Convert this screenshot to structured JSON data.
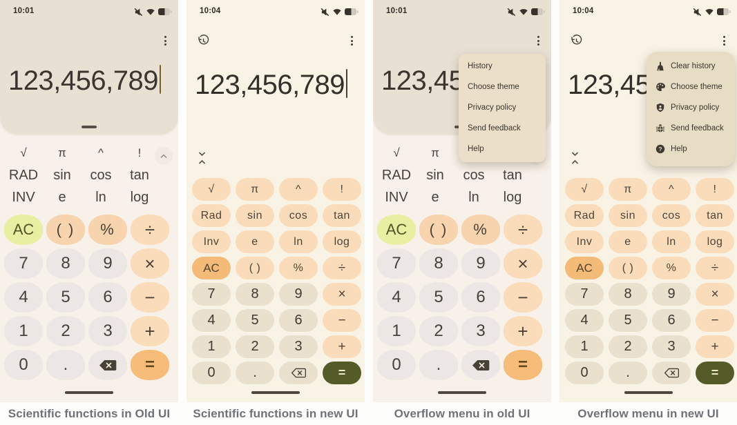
{
  "page": {
    "captions": [
      "Scientific functions in Old UI",
      "Scientific functions in new UI",
      "Overflow menu in old UI",
      "Overflow menu in new UI"
    ],
    "status_icons": [
      "volume-muted",
      "wifi",
      "battery"
    ]
  },
  "old": {
    "time": "10:01",
    "display": "123,456,789",
    "sci": [
      {
        "label": "√",
        "name": "sqrt-key",
        "type": "sym"
      },
      {
        "label": "π",
        "name": "pi-key",
        "type": "sym"
      },
      {
        "label": "^",
        "name": "power-key",
        "type": "sym"
      },
      {
        "label": "!",
        "name": "factorial-key",
        "type": "sym"
      },
      {
        "label": "RAD",
        "name": "rad-key",
        "type": "word"
      },
      {
        "label": "sin",
        "name": "sin-key",
        "type": "word"
      },
      {
        "label": "cos",
        "name": "cos-key",
        "type": "word"
      },
      {
        "label": "tan",
        "name": "tan-key",
        "type": "word"
      },
      {
        "label": "INV",
        "name": "inv-key",
        "type": "word"
      },
      {
        "label": "e",
        "name": "e-key",
        "type": "word"
      },
      {
        "label": "ln",
        "name": "ln-key",
        "type": "word"
      },
      {
        "label": "log",
        "name": "log-key",
        "type": "word"
      }
    ],
    "keys": [
      {
        "label": "AC",
        "name": "ac-key",
        "type": "ac"
      },
      {
        "label": "( )",
        "name": "parentheses-key",
        "type": "fn"
      },
      {
        "label": "%",
        "name": "percent-key",
        "type": "fn"
      },
      {
        "label": "÷",
        "name": "divide-key",
        "type": "op"
      },
      {
        "label": "7",
        "name": "key-7",
        "type": "num"
      },
      {
        "label": "8",
        "name": "key-8",
        "type": "num"
      },
      {
        "label": "9",
        "name": "key-9",
        "type": "num"
      },
      {
        "label": "×",
        "name": "multiply-key",
        "type": "op"
      },
      {
        "label": "4",
        "name": "key-4",
        "type": "num"
      },
      {
        "label": "5",
        "name": "key-5",
        "type": "num"
      },
      {
        "label": "6",
        "name": "key-6",
        "type": "num"
      },
      {
        "label": "−",
        "name": "minus-key",
        "type": "op"
      },
      {
        "label": "1",
        "name": "key-1",
        "type": "num"
      },
      {
        "label": "2",
        "name": "key-2",
        "type": "num"
      },
      {
        "label": "3",
        "name": "key-3",
        "type": "num"
      },
      {
        "label": "+",
        "name": "plus-key",
        "type": "op"
      },
      {
        "label": "0",
        "name": "key-0",
        "type": "num"
      },
      {
        "label": ".",
        "name": "decimal-key",
        "type": "num"
      },
      {
        "label": "",
        "name": "backspace-key",
        "type": "del-old"
      },
      {
        "label": "=",
        "name": "equals-key",
        "type": "eq"
      }
    ],
    "menu": {
      "items": [
        "History",
        "Choose theme",
        "Privacy policy",
        "Send feedback",
        "Help"
      ]
    }
  },
  "new": {
    "time": "10:04",
    "display": "123,456,789",
    "pills": [
      {
        "label": "√",
        "name": "sqrt-key",
        "type": "sci"
      },
      {
        "label": "π",
        "name": "pi-key",
        "type": "sci"
      },
      {
        "label": "^",
        "name": "power-key",
        "type": "sci"
      },
      {
        "label": "!",
        "name": "factorial-key",
        "type": "sci"
      },
      {
        "label": "Rad",
        "name": "rad-key",
        "type": "sci"
      },
      {
        "label": "sin",
        "name": "sin-key",
        "type": "sci"
      },
      {
        "label": "cos",
        "name": "cos-key",
        "type": "sci"
      },
      {
        "label": "tan",
        "name": "tan-key",
        "type": "sci"
      },
      {
        "label": "Inv",
        "name": "inv-key",
        "type": "sci"
      },
      {
        "label": "e",
        "name": "e-key",
        "type": "sci"
      },
      {
        "label": "ln",
        "name": "ln-key",
        "type": "sci"
      },
      {
        "label": "log",
        "name": "log-key",
        "type": "sci"
      },
      {
        "label": "AC",
        "name": "ac-key",
        "type": "ac"
      },
      {
        "label": "( )",
        "name": "parentheses-key",
        "type": "sci"
      },
      {
        "label": "%",
        "name": "percent-key",
        "type": "sci"
      },
      {
        "label": "÷",
        "name": "divide-key",
        "type": "opn"
      },
      {
        "label": "7",
        "name": "key-7",
        "type": "num"
      },
      {
        "label": "8",
        "name": "key-8",
        "type": "num"
      },
      {
        "label": "9",
        "name": "key-9",
        "type": "num"
      },
      {
        "label": "×",
        "name": "multiply-key",
        "type": "opn"
      },
      {
        "label": "4",
        "name": "key-4",
        "type": "num"
      },
      {
        "label": "5",
        "name": "key-5",
        "type": "num"
      },
      {
        "label": "6",
        "name": "key-6",
        "type": "num"
      },
      {
        "label": "−",
        "name": "minus-key",
        "type": "opn"
      },
      {
        "label": "1",
        "name": "key-1",
        "type": "num"
      },
      {
        "label": "2",
        "name": "key-2",
        "type": "num"
      },
      {
        "label": "3",
        "name": "key-3",
        "type": "num"
      },
      {
        "label": "+",
        "name": "plus-key",
        "type": "opn"
      },
      {
        "label": "0",
        "name": "key-0",
        "type": "num"
      },
      {
        "label": ".",
        "name": "decimal-key",
        "type": "num"
      },
      {
        "label": "",
        "name": "backspace-key",
        "type": "del-new"
      },
      {
        "label": "=",
        "name": "equals-key",
        "type": "eq"
      }
    ],
    "menu": {
      "items": [
        {
          "icon": "clear-history-icon",
          "label": "Clear history"
        },
        {
          "icon": "palette-icon",
          "label": "Choose theme"
        },
        {
          "icon": "privacy-policy-icon",
          "label": "Privacy policy"
        },
        {
          "icon": "bug-icon",
          "label": "Send feedback"
        },
        {
          "icon": "help-icon",
          "label": "Help"
        }
      ]
    }
  },
  "colors": {
    "old_accent_ac": "#e9efa2",
    "old_accent_equals": "#f6bd7a",
    "old_operator": "#fbdcba",
    "old_function": "#f7d3ae",
    "old_digit": "#ece6e4",
    "new_pill": "#fbdcba",
    "new_digit": "#e9e0cd",
    "new_ac": "#f4ba78",
    "new_equals": "#545b29",
    "menu_bg_old": "#ebdfc9",
    "menu_bg_new": "#e7dcc4"
  }
}
